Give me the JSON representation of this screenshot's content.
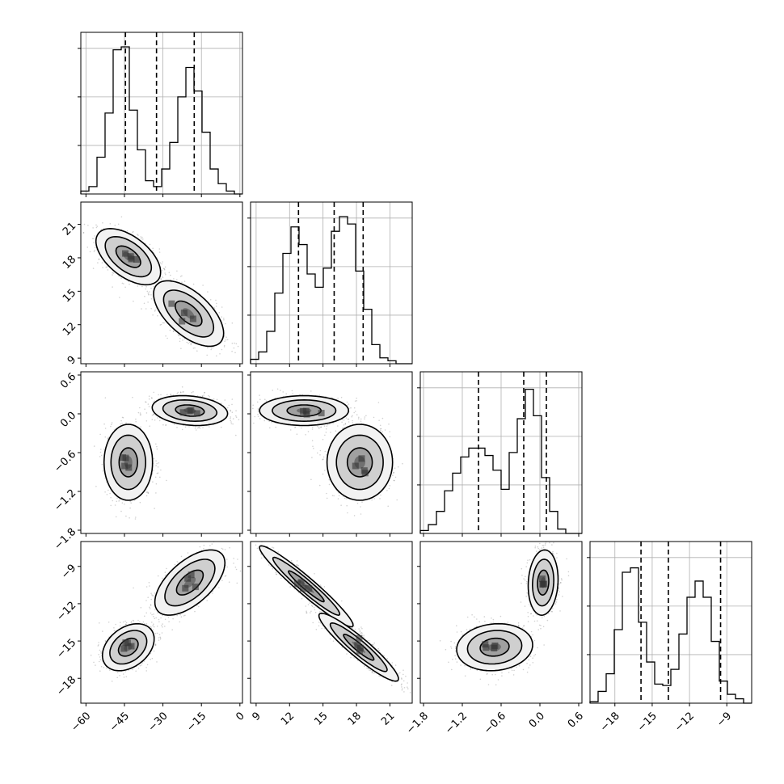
{
  "chart_data": {
    "type": "corner",
    "parameters": [
      {
        "id": "p0",
        "range": [
          -62,
          1
        ],
        "ticks": [
          -60,
          -45,
          -30,
          -15,
          0
        ],
        "tick_labels": [
          "−60",
          "−45",
          "−30",
          "−15",
          "0"
        ],
        "quantiles": [
          -44.6,
          -32.5,
          -17.8
        ]
      },
      {
        "id": "p1",
        "range": [
          8.5,
          23
        ],
        "ticks": [
          9,
          12,
          15,
          18,
          21
        ],
        "tick_labels": [
          "9",
          "12",
          "15",
          "18",
          "21"
        ],
        "quantiles": [
          12.8,
          16.0,
          18.6
        ]
      },
      {
        "id": "p2",
        "range": [
          -1.85,
          0.65
        ],
        "ticks": [
          -1.8,
          -1.2,
          -0.6,
          0.0,
          0.6
        ],
        "tick_labels": [
          "−1.8",
          "−1.2",
          "−0.6",
          "0.0",
          "0.6"
        ],
        "quantiles": [
          -0.95,
          -0.25,
          0.1
        ]
      },
      {
        "id": "p3",
        "range": [
          -20,
          -7
        ],
        "ticks": [
          -18,
          -15,
          -12,
          -9
        ],
        "tick_labels": [
          "−18",
          "−15",
          "−12",
          "−9"
        ],
        "quantiles": [
          -15.9,
          -13.7,
          -9.5
        ]
      }
    ],
    "histograms": [
      {
        "param": 0,
        "bins": 20,
        "counts": [
          0.02,
          0.05,
          0.25,
          0.55,
          0.98,
          1.0,
          0.57,
          0.3,
          0.09,
          0.05,
          0.17,
          0.35,
          0.66,
          0.86,
          0.7,
          0.42,
          0.17,
          0.07,
          0.02,
          0.0
        ]
      },
      {
        "param": 1,
        "bins": 20,
        "counts": [
          0.03,
          0.08,
          0.22,
          0.48,
          0.75,
          0.93,
          0.81,
          0.61,
          0.52,
          0.65,
          0.9,
          1.0,
          0.95,
          0.63,
          0.37,
          0.13,
          0.04,
          0.02,
          0.0,
          0.0
        ]
      },
      {
        "param": 2,
        "bins": 20,
        "counts": [
          0.02,
          0.06,
          0.15,
          0.29,
          0.41,
          0.52,
          0.58,
          0.58,
          0.53,
          0.43,
          0.3,
          0.55,
          0.78,
          0.98,
          0.8,
          0.38,
          0.15,
          0.03,
          0.0,
          0.0
        ]
      },
      {
        "param": 3,
        "bins": 20,
        "counts": [
          0.01,
          0.08,
          0.2,
          0.5,
          0.89,
          0.92,
          0.55,
          0.28,
          0.13,
          0.12,
          0.23,
          0.47,
          0.72,
          0.83,
          0.72,
          0.42,
          0.15,
          0.06,
          0.03,
          0.0
        ]
      }
    ],
    "density_panels": [
      {
        "x": 0,
        "y": 1,
        "modes": [
          {
            "mean": [
              -43.5,
              18.1
            ],
            "sd": [
              6.0,
              1.2
            ],
            "rho": -0.55
          },
          {
            "mean": [
              -20.0,
              13.0
            ],
            "sd": [
              6.5,
              1.4
            ],
            "rho": -0.6
          }
        ]
      },
      {
        "x": 0,
        "y": 2,
        "modes": [
          {
            "mean": [
              -43.5,
              -0.75
            ],
            "sd": [
              4.5,
              0.28
            ],
            "rho": 0.0
          },
          {
            "mean": [
              -19.5,
              0.05
            ],
            "sd": [
              7.0,
              0.11
            ],
            "rho": -0.2
          }
        ]
      },
      {
        "x": 1,
        "y": 2,
        "modes": [
          {
            "mean": [
              13.3,
              0.05
            ],
            "sd": [
              1.9,
              0.11
            ],
            "rho": 0.0
          },
          {
            "mean": [
              18.3,
              -0.75
            ],
            "sd": [
              1.4,
              0.28
            ],
            "rho": 0.0
          }
        ]
      },
      {
        "x": 0,
        "y": 3,
        "modes": [
          {
            "mean": [
              -43.5,
              -15.5
            ],
            "sd": [
              4.8,
              0.9
            ],
            "rho": 0.35
          },
          {
            "mean": [
              -19.5,
              -10.3
            ],
            "sd": [
              6.5,
              1.25
            ],
            "rho": 0.6
          }
        ]
      },
      {
        "x": 1,
        "y": 3,
        "modes": [
          {
            "mean": [
              13.5,
              -10.6
            ],
            "sd": [
              2.0,
              1.55
            ],
            "rho": -0.96
          },
          {
            "mean": [
              18.2,
              -15.5
            ],
            "sd": [
              1.7,
              1.3
            ],
            "rho": -0.93
          }
        ]
      },
      {
        "x": 2,
        "y": 3,
        "modes": [
          {
            "mean": [
              -0.7,
              -15.5
            ],
            "sd": [
              0.28,
              0.9
            ],
            "rho": 0.1
          },
          {
            "mean": [
              0.05,
              -10.3
            ],
            "sd": [
              0.11,
              1.25
            ],
            "rho": 0.1
          }
        ]
      }
    ],
    "contour_levels_sigma": [
      0.8,
      1.5,
      2.1
    ],
    "grid": true,
    "title": "",
    "axis_labels": []
  }
}
